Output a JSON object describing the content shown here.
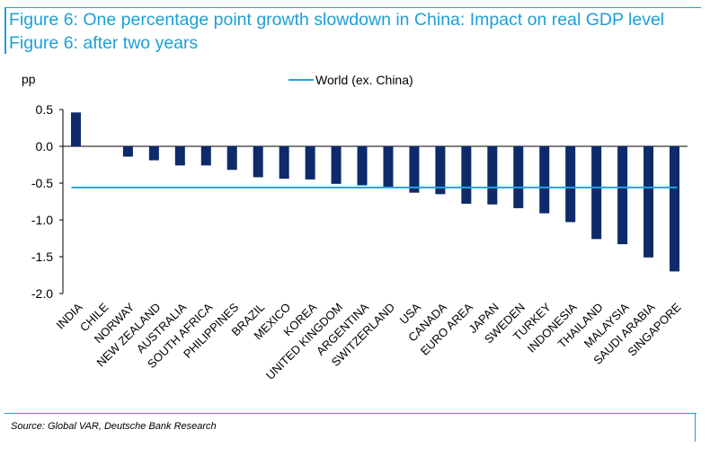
{
  "title": "Figure 6: One percentage point growth slowdown in China: Impact on real GDP level Figure 6: after two years",
  "source": "Source: Global VAR, Deutsche Bank Research",
  "colors": {
    "accent": "#1b9fd6",
    "bars": "#0d2a6b",
    "world_line": "#1ea7de"
  },
  "chart_data": {
    "type": "bar",
    "ylabel": "pp",
    "ylim": [
      -2.0,
      0.5
    ],
    "yticks": [
      0.5,
      0.0,
      -0.5,
      -1.0,
      -1.5,
      -2.0
    ],
    "ytick_labels": [
      "0.5",
      "0.0",
      "-0.5",
      "-1.0",
      "-1.5",
      "-2.0"
    ],
    "categories": [
      "INDIA",
      "CHILE",
      "NORWAY",
      "NEW ZEALAND",
      "AUSTRALIA",
      "SOUTH AFRICA",
      "PHILIPPINES",
      "BRAZIL",
      "MEXICO",
      "KOREA",
      "UNITED KINGDOM",
      "ARGENTINA",
      "SWITZERLAND",
      "USA",
      "CANADA",
      "EURO AREA",
      "JAPAN",
      "SWEDEN",
      "TURKEY",
      "INDONESIA",
      "THAILAND",
      "MALAYSIA",
      "SAUDI ARABIA",
      "SINGAPORE"
    ],
    "values": [
      0.46,
      0.0,
      -0.14,
      -0.19,
      -0.26,
      -0.26,
      -0.32,
      -0.42,
      -0.44,
      -0.45,
      -0.51,
      -0.53,
      -0.55,
      -0.63,
      -0.65,
      -0.78,
      -0.79,
      -0.84,
      -0.91,
      -1.03,
      -1.26,
      -1.33,
      -1.51,
      -1.7
    ],
    "reference_line": {
      "name": "World (ex. China)",
      "value": -0.56
    },
    "legend": "top-center",
    "grid": false
  }
}
